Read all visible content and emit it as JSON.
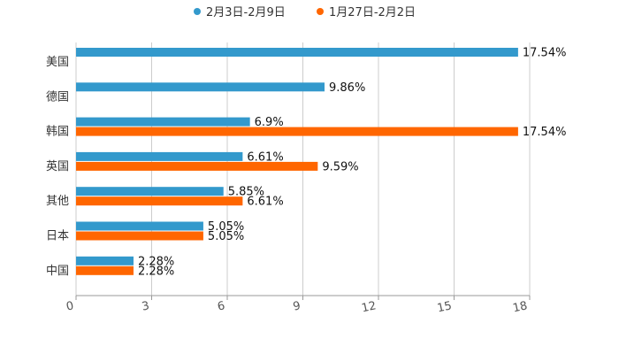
{
  "chart_data": {
    "type": "bar",
    "orientation": "horizontal",
    "title": "",
    "xlabel": "",
    "ylabel": "",
    "categories": [
      "美国",
      "德国",
      "韩国",
      "英国",
      "其他",
      "日本",
      "中国"
    ],
    "series": [
      {
        "name": "2月3日-2月9日",
        "color": "#3399cc",
        "values": [
          17.54,
          9.86,
          6.9,
          6.61,
          5.85,
          5.05,
          2.28
        ],
        "labels": [
          "17.54%",
          "9.86%",
          "6.9%",
          "6.61%",
          "5.85%",
          "5.05%",
          "2.28%"
        ]
      },
      {
        "name": "1月27日-2月2日",
        "color": "#ff6600",
        "values": [
          null,
          null,
          17.54,
          9.59,
          6.61,
          5.05,
          2.28
        ],
        "labels": [
          null,
          null,
          "17.54%",
          "9.59%",
          "6.61%",
          "5.05%",
          "2.28%"
        ]
      }
    ],
    "xlim": [
      0,
      18
    ],
    "xticks": [
      0,
      3,
      6,
      9,
      12,
      15,
      18
    ],
    "xtick_labels": [
      "0",
      "3",
      "6",
      "9",
      "12",
      "15",
      "18"
    ],
    "grid": true,
    "legend_position": "top-center"
  }
}
